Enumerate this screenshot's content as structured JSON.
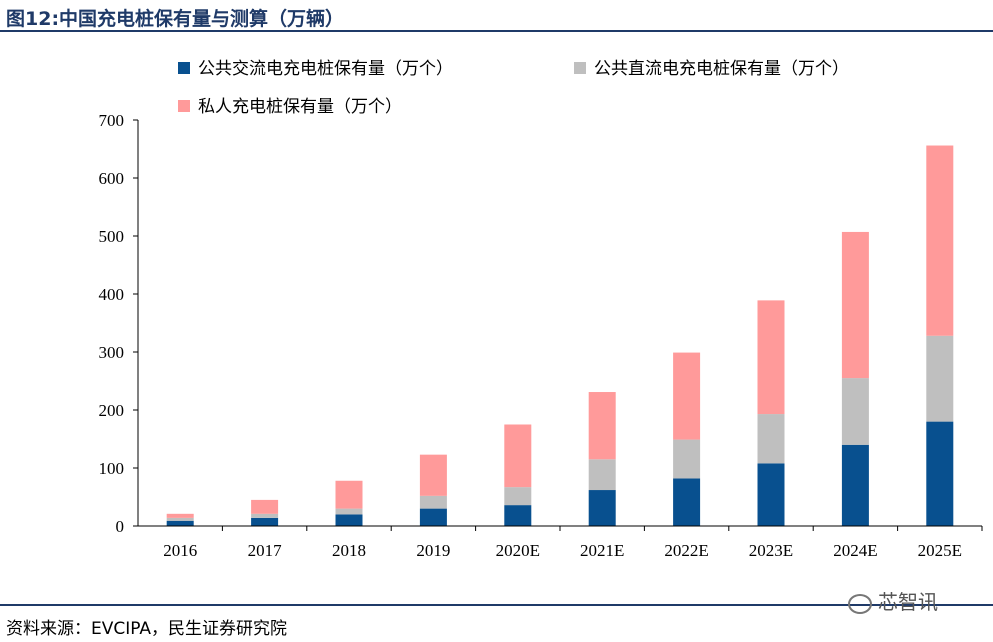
{
  "header": {
    "title": "图12:中国充电桩保有量与测算（万辆）"
  },
  "footer": {
    "source": "资料来源：EVCIPA，民生证券研究院",
    "watermark": "芯智讯"
  },
  "chart_data": {
    "type": "bar",
    "stacked": true,
    "categories": [
      "2016",
      "2017",
      "2018",
      "2019",
      "2020E",
      "2021E",
      "2022E",
      "2023E",
      "2024E",
      "2025E"
    ],
    "series": [
      {
        "name": "公共交流电充电桩保有量（万个）",
        "color": "#08508f",
        "values": [
          9,
          14,
          20,
          30,
          36,
          62,
          82,
          108,
          140,
          180
        ]
      },
      {
        "name": "公共直流电充电桩保有量（万个）",
        "color": "#bfbfbf",
        "values": [
          5,
          7,
          10,
          22,
          31,
          53,
          67,
          85,
          115,
          148
        ]
      },
      {
        "name": "私人充电桩保有量（万个）",
        "color": "#ff9a9a",
        "values": [
          7,
          24,
          48,
          71,
          108,
          116,
          150,
          196,
          252,
          328
        ]
      }
    ],
    "ylim": [
      0,
      700
    ],
    "yticks": [
      0,
      100,
      200,
      300,
      400,
      500,
      600,
      700
    ],
    "legend_position": "top-left",
    "grid": false
  }
}
